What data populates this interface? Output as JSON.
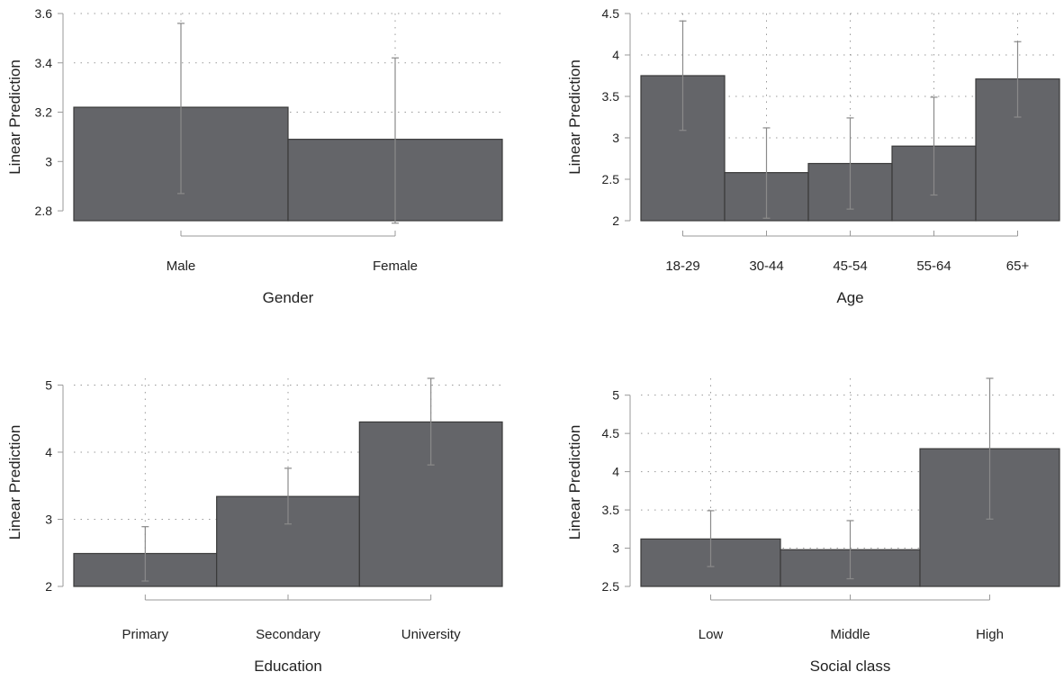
{
  "chart_data": [
    {
      "type": "bar",
      "xlabel": "Gender",
      "ylabel": "Linear Prediction",
      "categories": [
        "Male",
        "Female"
      ],
      "values": [
        3.22,
        3.09
      ],
      "ci_low": [
        2.87,
        2.75
      ],
      "ci_high": [
        3.56,
        3.42
      ],
      "ylim": [
        2.76,
        3.6
      ],
      "yticks": [
        2.8,
        3,
        3.2,
        3.4,
        3.6
      ],
      "ytick_labels": [
        "2.8",
        "3",
        "3.2",
        "3.4",
        "3.6"
      ],
      "grid": true,
      "bar_color": "#646569"
    },
    {
      "type": "bar",
      "xlabel": "Age",
      "ylabel": "Linear Prediction",
      "categories": [
        "18-29",
        "30-44",
        "45-54",
        "55-64",
        "65+"
      ],
      "values": [
        3.75,
        2.58,
        2.69,
        2.9,
        3.71
      ],
      "ci_low": [
        3.09,
        2.03,
        2.14,
        2.31,
        3.25
      ],
      "ci_high": [
        4.41,
        3.12,
        3.24,
        3.49,
        4.16
      ],
      "ylim": [
        2,
        4.5
      ],
      "yticks": [
        2,
        2.5,
        3,
        3.5,
        4,
        4.5
      ],
      "ytick_labels": [
        "2",
        "2.5",
        "3",
        "3.5",
        "4",
        "4.5"
      ],
      "grid": true,
      "bar_color": "#646569"
    },
    {
      "type": "bar",
      "xlabel": "Education",
      "ylabel": "Linear Prediction",
      "categories": [
        "Primary",
        "Secondary",
        "University"
      ],
      "values": [
        2.49,
        3.34,
        4.45
      ],
      "ci_low": [
        2.08,
        2.93,
        3.81
      ],
      "ci_high": [
        2.89,
        3.76,
        5.1
      ],
      "ylim": [
        2,
        5.1
      ],
      "yticks": [
        2,
        3,
        4,
        5
      ],
      "ytick_labels": [
        "2",
        "3",
        "4",
        "5"
      ],
      "grid": true,
      "bar_color": "#646569"
    },
    {
      "type": "bar",
      "xlabel": "Social class",
      "ylabel": "Linear Prediction",
      "categories": [
        "Low",
        "Middle",
        "High"
      ],
      "values": [
        3.12,
        2.98,
        4.3
      ],
      "ci_low": [
        2.76,
        2.6,
        3.38
      ],
      "ci_high": [
        3.49,
        3.36,
        5.22
      ],
      "ylim": [
        2.5,
        5.22
      ],
      "yticks": [
        2.5,
        3,
        3.5,
        4,
        4.5,
        5
      ],
      "ytick_labels": [
        "2.5",
        "3",
        "3.5",
        "4",
        "4.5",
        "5"
      ],
      "grid": true,
      "bar_color": "#646569"
    }
  ]
}
